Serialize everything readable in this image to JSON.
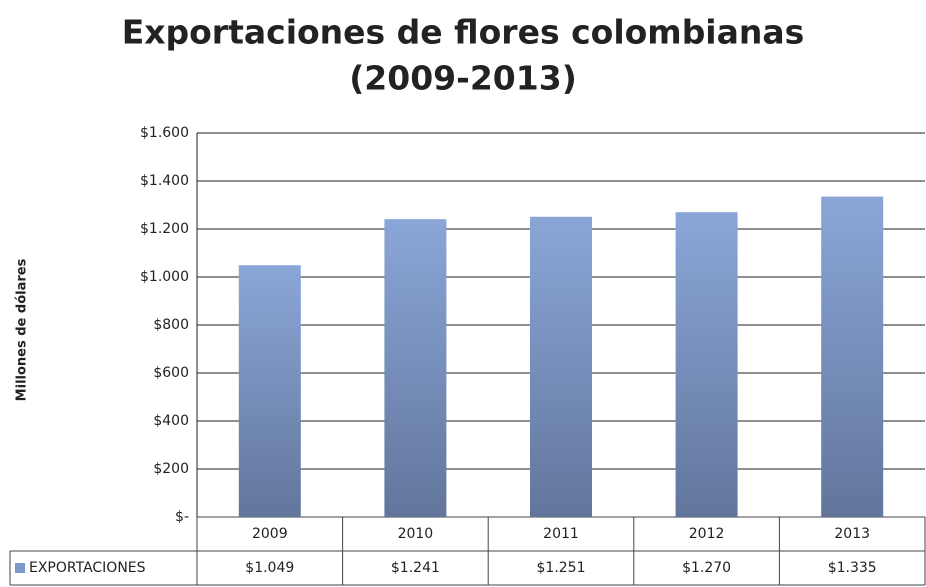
{
  "chart_data": {
    "type": "bar",
    "title": "Exportaciones de flores colombianas",
    "subtitle": "(2009-2013)",
    "y_label": "Millones de dólares",
    "categories": [
      "2009",
      "2010",
      "2011",
      "2012",
      "2013"
    ],
    "series": [
      {
        "name": "EXPORTACIONES",
        "color": "#7f97c8",
        "values": [
          1049,
          1241,
          1251,
          1270,
          1335
        ],
        "value_labels": [
          "$1.049",
          "$1.241",
          "$1.251",
          "$1.270",
          "$1.335"
        ]
      }
    ],
    "ylim": [
      0,
      1600
    ],
    "yticks": [
      {
        "value": 0,
        "label": "$-"
      },
      {
        "value": 200,
        "label": "$200"
      },
      {
        "value": 400,
        "label": "$400"
      },
      {
        "value": 600,
        "label": "$600"
      },
      {
        "value": 800,
        "label": "$800"
      },
      {
        "value": 1000,
        "label": "$1.000"
      },
      {
        "value": 1200,
        "label": "$1.200"
      },
      {
        "value": 1400,
        "label": "$1.400"
      },
      {
        "value": 1600,
        "label": "$1.600"
      }
    ],
    "grid": true
  }
}
